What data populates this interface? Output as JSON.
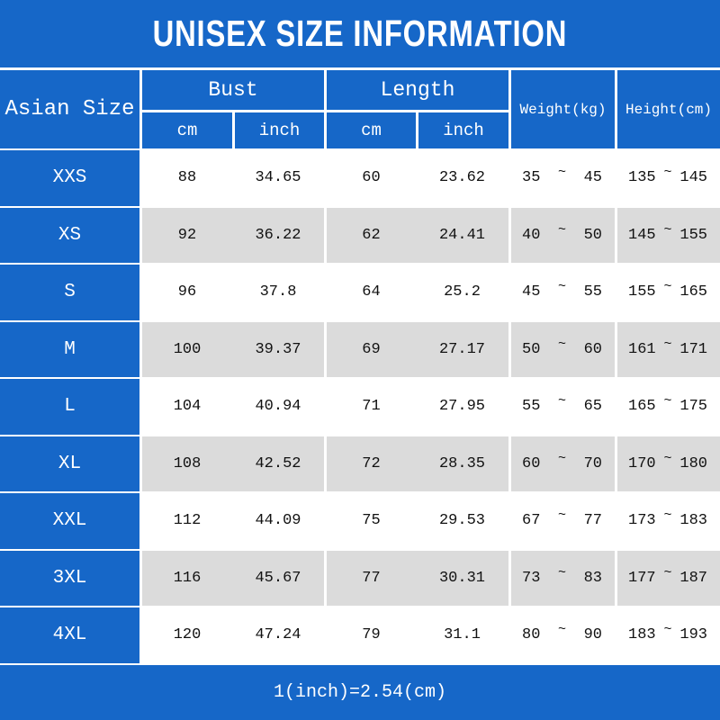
{
  "title": "UNISEX SIZE INFORMATION",
  "colors": {
    "blue": "#1667C8",
    "row_gray": "#DBDBDB",
    "row_white": "#FFFFFF",
    "text_dark": "#111111",
    "text_light": "#FFFFFF"
  },
  "header": {
    "size_col": "Asian Size",
    "bust_group": "Bust",
    "length_group": "Length",
    "bust_cm": "cm",
    "bust_inch": "inch",
    "length_cm": "cm",
    "length_inch": "inch",
    "weight": "Weight(kg)",
    "height": "Height(cm)"
  },
  "tilde": "~",
  "footer": {
    "note": "1(inch)=2.54(cm)"
  },
  "chart_data": {
    "type": "table",
    "title": "UNISEX SIZE INFORMATION",
    "columns": [
      "Asian Size",
      "Bust (cm)",
      "Bust (inch)",
      "Length (cm)",
      "Length (inch)",
      "Weight (kg)",
      "Height (cm)"
    ],
    "rows": [
      [
        "XXS",
        "88",
        "34.65",
        "60",
        "23.62",
        "35~45",
        "135~145"
      ],
      [
        "XS",
        "92",
        "36.22",
        "62",
        "24.41",
        "40~50",
        "145~155"
      ],
      [
        "S",
        "96",
        "37.8",
        "64",
        "25.2",
        "45~55",
        "155~165"
      ],
      [
        "M",
        "100",
        "39.37",
        "69",
        "27.17",
        "50~60",
        "161~171"
      ],
      [
        "L",
        "104",
        "40.94",
        "71",
        "27.95",
        "55~65",
        "165~175"
      ],
      [
        "XL",
        "108",
        "42.52",
        "72",
        "28.35",
        "60~70",
        "170~180"
      ],
      [
        "XXL",
        "112",
        "44.09",
        "75",
        "29.53",
        "67~77",
        "173~183"
      ],
      [
        "3XL",
        "116",
        "45.67",
        "77",
        "30.31",
        "73~83",
        "177~187"
      ],
      [
        "4XL",
        "120",
        "47.24",
        "79",
        "31.1",
        "80~90",
        "183~193"
      ]
    ],
    "note": "1(inch)=2.54(cm)"
  }
}
